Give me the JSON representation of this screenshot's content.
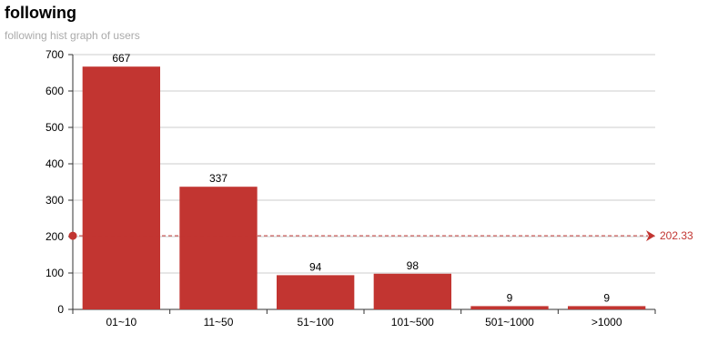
{
  "chart_data": {
    "type": "bar",
    "title": "following",
    "subtitle": "following hist graph of users",
    "categories": [
      "01~10",
      "11~50",
      "51~100",
      "101~500",
      "501~1000",
      ">1000"
    ],
    "values": [
      667,
      337,
      94,
      98,
      9,
      9
    ],
    "ylim": [
      0,
      700
    ],
    "yticks": [
      0,
      100,
      200,
      300,
      400,
      500,
      600,
      700
    ],
    "grid": true,
    "bar_color": "#c23531",
    "mark_line": {
      "type": "average",
      "value": 202.33,
      "label": "202.33",
      "color": "#c23531"
    }
  }
}
